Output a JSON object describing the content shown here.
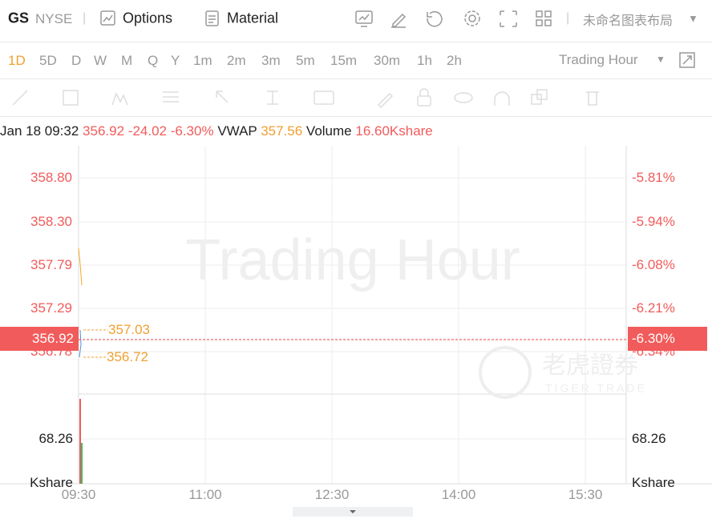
{
  "header": {
    "symbol": "GS",
    "exchange": "NYSE",
    "menu": [
      "Options",
      "Material"
    ],
    "layout_name": "未命名图表布局"
  },
  "timeframes": {
    "items": [
      "1D",
      "5D",
      "D",
      "W",
      "M",
      "Q",
      "Y",
      "1m",
      "2m",
      "3m",
      "5m",
      "15m",
      "30m",
      "1h",
      "2h"
    ],
    "session": "Trading Hour"
  },
  "info": {
    "datetime": "Jan 18 09:32",
    "price": "356.92",
    "change": "-24.02",
    "change_pct": "-6.30%",
    "vwap_label": "VWAP",
    "vwap": "357.56",
    "volume_label": "Volume",
    "volume": "16.60Kshare"
  },
  "chart": {
    "watermark": "Trading Hour",
    "brand": "老虎證券",
    "brand_en": "TIGER TRADE",
    "price_ticks": [
      "358.80",
      "358.30",
      "357.79",
      "357.29",
      "356.78"
    ],
    "pct_ticks": [
      "-5.81%",
      "-5.94%",
      "-6.08%",
      "-6.21%",
      "-6.34%"
    ],
    "current_price": "356.92",
    "current_pct": "-6.30%",
    "high": "357.03",
    "low": "356.72",
    "volume_tick": "68.26",
    "volume_unit": "Kshare",
    "time_ticks": [
      "09:30",
      "11:00",
      "12:30",
      "14:00",
      "15:30"
    ]
  }
}
